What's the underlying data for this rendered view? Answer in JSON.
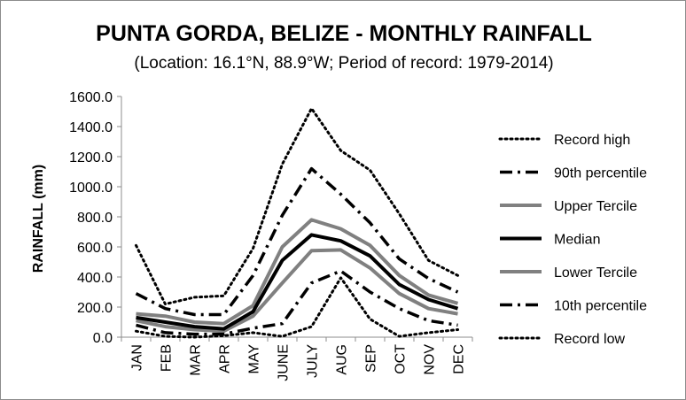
{
  "chart_data": {
    "type": "line",
    "title": "PUNTA GORDA, BELIZE - MONTHLY RAINFALL",
    "subtitle": "(Location: 16.1°N, 88.9°W; Period of record: 1979-2014)",
    "xlabel": "",
    "ylabel": "RAINFALL (mm)",
    "ylim": [
      0,
      1600
    ],
    "y_ticks": [
      "0.0",
      "200.0",
      "400.0",
      "600.0",
      "800.0",
      "1000.0",
      "1200.0",
      "1400.0",
      "1600.0"
    ],
    "categories": [
      "JAN",
      "FEB",
      "MAR",
      "APR",
      "MAY",
      "JUNE",
      "JULY",
      "AUG",
      "SEP",
      "OCT",
      "NOV",
      "DEC"
    ],
    "grid": false,
    "legend_position": "right",
    "series": [
      {
        "name": "Record high",
        "style": "dotted",
        "color": "#000000",
        "values": [
          610,
          220,
          265,
          275,
          590,
          1150,
          1520,
          1240,
          1110,
          820,
          510,
          410
        ]
      },
      {
        "name": "90th percentile",
        "style": "dashdot",
        "color": "#000000",
        "values": [
          290,
          190,
          150,
          150,
          410,
          810,
          1120,
          950,
          760,
          520,
          390,
          300
        ]
      },
      {
        "name": "Upper Tercile",
        "style": "solid-gray",
        "color": "#808080",
        "values": [
          155,
          140,
          100,
          90,
          210,
          600,
          780,
          720,
          610,
          410,
          280,
          225
        ]
      },
      {
        "name": "Median",
        "style": "solid-black",
        "color": "#000000",
        "values": [
          130,
          100,
          70,
          55,
          170,
          510,
          680,
          640,
          540,
          350,
          250,
          190
        ]
      },
      {
        "name": "Lower Tercile",
        "style": "solid-gray",
        "color": "#808080",
        "values": [
          110,
          70,
          50,
          40,
          140,
          360,
          575,
          580,
          460,
          290,
          190,
          155
        ]
      },
      {
        "name": "10th percentile",
        "style": "dashdot",
        "color": "#000000",
        "values": [
          80,
          30,
          20,
          20,
          60,
          90,
          360,
          440,
          300,
          190,
          110,
          80
        ]
      },
      {
        "name": "Record low",
        "style": "dotted",
        "color": "#000000",
        "values": [
          40,
          5,
          0,
          10,
          30,
          5,
          70,
          395,
          120,
          5,
          30,
          50
        ]
      }
    ]
  }
}
